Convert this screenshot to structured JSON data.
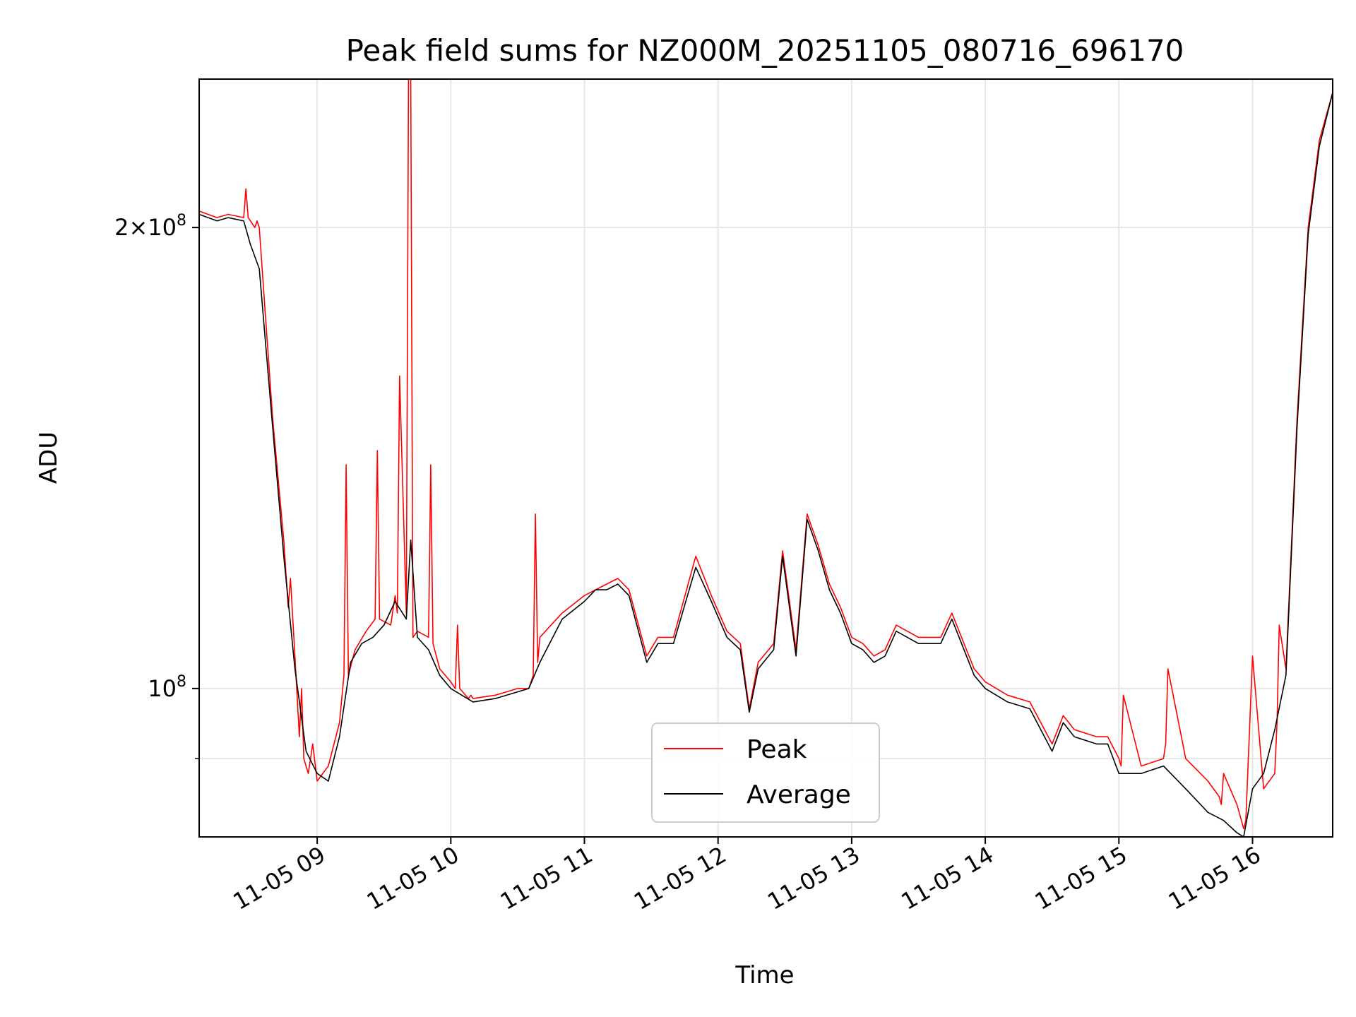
{
  "chart_data": {
    "type": "line",
    "title": "Peak field sums for NZ000M_20251105_080716_696170",
    "xlabel": "Time",
    "ylabel": "ADU",
    "y_scale": "log",
    "ylim": [
      80000000,
      250000000
    ],
    "grid": true,
    "legend_position": "lower-center",
    "x_tick_labels": [
      "11-05 09",
      "11-05 10",
      "11-05 11",
      "11-05 12",
      "11-05 13",
      "11-05 14",
      "11-05 15",
      "11-05 16"
    ],
    "x_tick_values": [
      "2025-11-05 09:00",
      "2025-11-05 10:00",
      "2025-11-05 11:00",
      "2025-11-05 12:00",
      "2025-11-05 13:00",
      "2025-11-05 14:00",
      "2025-11-05 15:00",
      "2025-11-05 16:00"
    ],
    "xlim": [
      "2025-11-05 08:07",
      "2025-11-05 16:36"
    ],
    "y_tick_labels": [
      {
        "value": 100000000,
        "base": "10",
        "exp": "8",
        "coef": ""
      },
      {
        "value": 200000000,
        "base": "10",
        "exp": "8",
        "coef": "2×"
      }
    ],
    "y_minor_ticks": [
      90000000
    ],
    "series": [
      {
        "name": "Peak",
        "color": "#ff0000",
        "x": [
          "2025-11-05 08:07",
          "2025-11-05 08:15",
          "2025-11-05 08:20",
          "2025-11-05 08:27",
          "2025-11-05 08:28",
          "2025-11-05 08:29",
          "2025-11-05 08:32",
          "2025-11-05 08:33",
          "2025-11-05 08:34",
          "2025-11-05 08:40",
          "2025-11-05 08:45",
          "2025-11-05 08:47",
          "2025-11-05 08:48",
          "2025-11-05 08:50",
          "2025-11-05 08:52",
          "2025-11-05 08:53",
          "2025-11-05 08:54",
          "2025-11-05 08:56",
          "2025-11-05 08:58",
          "2025-11-05 09:00",
          "2025-11-05 09:05",
          "2025-11-05 09:10",
          "2025-11-05 09:12",
          "2025-11-05 09:13",
          "2025-11-05 09:14",
          "2025-11-05 09:17",
          "2025-11-05 09:22",
          "2025-11-05 09:26",
          "2025-11-05 09:27",
          "2025-11-05 09:28",
          "2025-11-05 09:33",
          "2025-11-05 09:35",
          "2025-11-05 09:36",
          "2025-11-05 09:37",
          "2025-11-05 09:40",
          "2025-11-05 09:41",
          "2025-11-05 09:42",
          "2025-11-05 09:43",
          "2025-11-05 09:45",
          "2025-11-05 09:50",
          "2025-11-05 09:51",
          "2025-11-05 09:52",
          "2025-11-05 09:55",
          "2025-11-05 10:00",
          "2025-11-05 10:02",
          "2025-11-05 10:03",
          "2025-11-05 10:04",
          "2025-11-05 10:08",
          "2025-11-05 10:09",
          "2025-11-05 10:10",
          "2025-11-05 10:20",
          "2025-11-05 10:25",
          "2025-11-05 10:30",
          "2025-11-05 10:35",
          "2025-11-05 10:37",
          "2025-11-05 10:38",
          "2025-11-05 10:39",
          "2025-11-05 10:40",
          "2025-11-05 10:45",
          "2025-11-05 10:50",
          "2025-11-05 11:00",
          "2025-11-05 11:05",
          "2025-11-05 11:10",
          "2025-11-05 11:15",
          "2025-11-05 11:20",
          "2025-11-05 11:28",
          "2025-11-05 11:33",
          "2025-11-05 11:40",
          "2025-11-05 11:50",
          "2025-11-05 11:57",
          "2025-11-05 12:04",
          "2025-11-05 12:10",
          "2025-11-05 12:14",
          "2025-11-05 12:18",
          "2025-11-05 12:25",
          "2025-11-05 12:29",
          "2025-11-05 12:35",
          "2025-11-05 12:40",
          "2025-11-05 12:45",
          "2025-11-05 12:50",
          "2025-11-05 12:55",
          "2025-11-05 13:00",
          "2025-11-05 13:05",
          "2025-11-05 13:10",
          "2025-11-05 13:15",
          "2025-11-05 13:20",
          "2025-11-05 13:30",
          "2025-11-05 13:40",
          "2025-11-05 13:45",
          "2025-11-05 13:55",
          "2025-11-05 14:00",
          "2025-11-05 14:10",
          "2025-11-05 14:20",
          "2025-11-05 14:30",
          "2025-11-05 14:35",
          "2025-11-05 14:40",
          "2025-11-05 14:50",
          "2025-11-05 14:55",
          "2025-11-05 15:00",
          "2025-11-05 15:01",
          "2025-11-05 15:02",
          "2025-11-05 15:10",
          "2025-11-05 15:20",
          "2025-11-05 15:21",
          "2025-11-05 15:22",
          "2025-11-05 15:30",
          "2025-11-05 15:40",
          "2025-11-05 15:45",
          "2025-11-05 15:46",
          "2025-11-05 15:47",
          "2025-11-05 15:53",
          "2025-11-05 15:54",
          "2025-11-05 15:55",
          "2025-11-05 15:56",
          "2025-11-05 15:57",
          "2025-11-05 16:00",
          "2025-11-05 16:05",
          "2025-11-05 16:10",
          "2025-11-05 16:11",
          "2025-11-05 16:12",
          "2025-11-05 16:15",
          "2025-11-05 16:20",
          "2025-11-05 16:25",
          "2025-11-05 16:30",
          "2025-11-05 16:36"
        ],
        "y": [
          205000000,
          203000000,
          204000000,
          203000000,
          212000000,
          203000000,
          200000000,
          202000000,
          200000000,
          150000000,
          125000000,
          113000000,
          118000000,
          105000000,
          93000000,
          100000000,
          90000000,
          88000000,
          92000000,
          87000000,
          89000000,
          95000000,
          102000000,
          140000000,
          102000000,
          106000000,
          109000000,
          111000000,
          143000000,
          111000000,
          110000000,
          115000000,
          112000000,
          160000000,
          112000000,
          250000000,
          250000000,
          108000000,
          109000000,
          108000000,
          140000000,
          107000000,
          103000000,
          101000000,
          100000000,
          110000000,
          100000000,
          98500000,
          99000000,
          98500000,
          99000000,
          99500000,
          100000000,
          100000000,
          102000000,
          130000000,
          104000000,
          108000000,
          110000000,
          112000000,
          115000000,
          116000000,
          117000000,
          118000000,
          116000000,
          105000000,
          108000000,
          108000000,
          122000000,
          115000000,
          109000000,
          107000000,
          97000000,
          104000000,
          107000000,
          123000000,
          106000000,
          130000000,
          124000000,
          117000000,
          113000000,
          108000000,
          107000000,
          105000000,
          106000000,
          110000000,
          108000000,
          108000000,
          112000000,
          103000000,
          101000000,
          99000000,
          98000000,
          92000000,
          96000000,
          94000000,
          93000000,
          93000000,
          90000000,
          89000000,
          99000000,
          89000000,
          90000000,
          92000000,
          103000000,
          90000000,
          87000000,
          85000000,
          84000000,
          88000000,
          84000000,
          83000000,
          82000000,
          81000000,
          82000000,
          105000000,
          86000000,
          88000000,
          95000000,
          110000000,
          103000000,
          150000000,
          200000000,
          228000000,
          245000000
        ]
      },
      {
        "name": "Average",
        "color": "#000000",
        "x": [
          "2025-11-05 08:07",
          "2025-11-05 08:15",
          "2025-11-05 08:20",
          "2025-11-05 08:27",
          "2025-11-05 08:30",
          "2025-11-05 08:34",
          "2025-11-05 08:40",
          "2025-11-05 08:45",
          "2025-11-05 08:50",
          "2025-11-05 08:55",
          "2025-11-05 09:00",
          "2025-11-05 09:05",
          "2025-11-05 09:10",
          "2025-11-05 09:15",
          "2025-11-05 09:20",
          "2025-11-05 09:25",
          "2025-11-05 09:30",
          "2025-11-05 09:35",
          "2025-11-05 09:40",
          "2025-11-05 09:42",
          "2025-11-05 09:45",
          "2025-11-05 09:50",
          "2025-11-05 09:55",
          "2025-11-05 10:00",
          "2025-11-05 10:10",
          "2025-11-05 10:20",
          "2025-11-05 10:30",
          "2025-11-05 10:35",
          "2025-11-05 10:40",
          "2025-11-05 10:50",
          "2025-11-05 11:00",
          "2025-11-05 11:05",
          "2025-11-05 11:10",
          "2025-11-05 11:15",
          "2025-11-05 11:20",
          "2025-11-05 11:28",
          "2025-11-05 11:33",
          "2025-11-05 11:40",
          "2025-11-05 11:50",
          "2025-11-05 11:57",
          "2025-11-05 12:04",
          "2025-11-05 12:10",
          "2025-11-05 12:14",
          "2025-11-05 12:18",
          "2025-11-05 12:25",
          "2025-11-05 12:29",
          "2025-11-05 12:35",
          "2025-11-05 12:40",
          "2025-11-05 12:45",
          "2025-11-05 12:50",
          "2025-11-05 12:55",
          "2025-11-05 13:00",
          "2025-11-05 13:05",
          "2025-11-05 13:10",
          "2025-11-05 13:15",
          "2025-11-05 13:20",
          "2025-11-05 13:30",
          "2025-11-05 13:40",
          "2025-11-05 13:45",
          "2025-11-05 13:55",
          "2025-11-05 14:00",
          "2025-11-05 14:10",
          "2025-11-05 14:20",
          "2025-11-05 14:30",
          "2025-11-05 14:35",
          "2025-11-05 14:40",
          "2025-11-05 14:50",
          "2025-11-05 14:55",
          "2025-11-05 15:00",
          "2025-11-05 15:10",
          "2025-11-05 15:20",
          "2025-11-05 15:30",
          "2025-11-05 15:40",
          "2025-11-05 15:47",
          "2025-11-05 15:53",
          "2025-11-05 15:56",
          "2025-11-05 16:00",
          "2025-11-05 16:05",
          "2025-11-05 16:10",
          "2025-11-05 16:15",
          "2025-11-05 16:20",
          "2025-11-05 16:25",
          "2025-11-05 16:30",
          "2025-11-05 16:36"
        ],
        "y": [
          204000000,
          202000000,
          203000000,
          202000000,
          195000000,
          188000000,
          148000000,
          122000000,
          103000000,
          91000000,
          88000000,
          87000000,
          93000000,
          104000000,
          107000000,
          108000000,
          110000000,
          114000000,
          111000000,
          125000000,
          108000000,
          106000000,
          102000000,
          100000000,
          98000000,
          98500000,
          99500000,
          100000000,
          104000000,
          111000000,
          114000000,
          116000000,
          116000000,
          117000000,
          115000000,
          104000000,
          107000000,
          107000000,
          120000000,
          114000000,
          108000000,
          106000000,
          96500000,
          103000000,
          106000000,
          122000000,
          105000000,
          129000000,
          123000000,
          116000000,
          112000000,
          107000000,
          106000000,
          104000000,
          105000000,
          109000000,
          107000000,
          107000000,
          111000000,
          102000000,
          100000000,
          98000000,
          97000000,
          91000000,
          95000000,
          93000000,
          92000000,
          92000000,
          88000000,
          88000000,
          89000000,
          86000000,
          83000000,
          82000000,
          80500000,
          80000000,
          86000000,
          88000000,
          94000000,
          102000000,
          148000000,
          198000000,
          226000000,
          245000000
        ]
      }
    ]
  }
}
